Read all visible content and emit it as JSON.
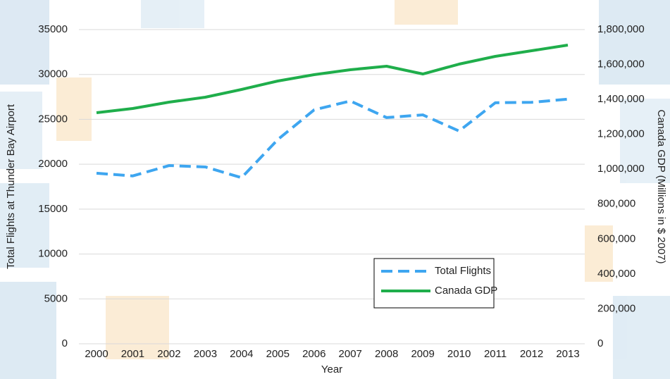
{
  "chart_data": {
    "type": "line",
    "xlabel": "Year",
    "ylabel": "Total Flights at Thunder Bay Airport",
    "y2label": "Canada GDP  (Millions in $ 2007)",
    "categories": [
      "2000",
      "2001",
      "2002",
      "2003",
      "2004",
      "2005",
      "2006",
      "2007",
      "2008",
      "2009",
      "2010",
      "2011",
      "2012",
      "2013"
    ],
    "series": [
      {
        "name": "Total Flights",
        "color": "#3ea6f0",
        "dashed": true,
        "values": [
          19000,
          18700,
          19850,
          19700,
          18500,
          22750,
          26050,
          27050,
          25200,
          25500,
          23700,
          26850,
          26900,
          27250
        ]
      },
      {
        "name": "Canada GDP",
        "color": "#1fae4b",
        "axis": "y2",
        "values": [
          1323800,
          1348000,
          1384300,
          1412600,
          1457000,
          1505400,
          1541700,
          1570000,
          1590100,
          1545700,
          1602200,
          1646600,
          1678900,
          1711200
        ]
      }
    ],
    "ylim": [
      0,
      35000
    ],
    "yticks": [
      0,
      5000,
      10000,
      15000,
      20000,
      25000,
      30000,
      35000
    ],
    "y2lim": [
      0,
      1800000
    ],
    "y2ticks": [
      {
        "value": 0,
        "label": "0"
      },
      {
        "value": 200000,
        "label": "200,000"
      },
      {
        "value": 400000,
        "label": "400,000"
      },
      {
        "value": 600000,
        "label": "600,000"
      },
      {
        "value": 800000,
        "label": "800,000"
      },
      {
        "value": 1000000,
        "label": "1,000,000"
      },
      {
        "value": 1200000,
        "label": "1,200,000"
      },
      {
        "value": 1400000,
        "label": "1,400,000"
      },
      {
        "value": 1600000,
        "label": "1,600,000"
      },
      {
        "value": 1800000,
        "label": "1,800,000"
      }
    ],
    "grid": true,
    "legend": "lower right"
  }
}
